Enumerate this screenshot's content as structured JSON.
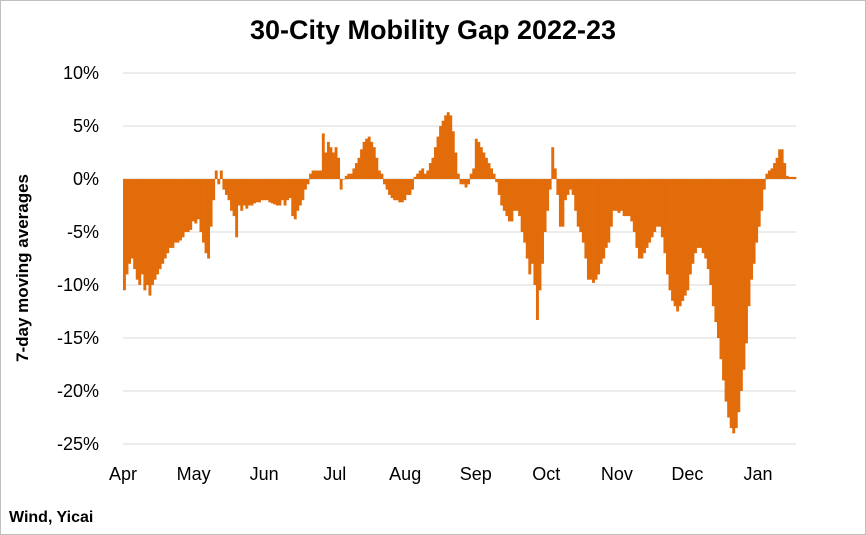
{
  "chart_data": {
    "type": "bar",
    "title": "30-City Mobility Gap 2022-23",
    "ylabel": "7-day moving averages",
    "xlabel": "",
    "source": "Wind, Yicai",
    "ylim": [
      -25,
      10
    ],
    "yticks": [
      10,
      5,
      0,
      -5,
      -10,
      -15,
      -20,
      -25
    ],
    "ytick_labels": [
      "10%",
      "5%",
      "0%",
      "-5%",
      "-10%",
      "-15%",
      "-20%",
      "-25%"
    ],
    "xtick_labels": [
      "Apr",
      "May",
      "Jun",
      "Jul",
      "Aug",
      "Sep",
      "Oct",
      "Nov",
      "Dec",
      "Jan"
    ],
    "grid": true,
    "bar_color": "#e36c0a",
    "series": [
      {
        "values": [
          -10.5,
          -9.0,
          -8.0,
          -7.5,
          -8.5,
          -9.5,
          -10.0,
          -9.0,
          -10.5,
          -10.0,
          -11.0,
          -10.0,
          -9.5,
          -9.0,
          -8.5,
          -8.0,
          -7.5,
          -7.0,
          -6.5,
          -6.5,
          -6.0,
          -6.0,
          -5.8,
          -5.5,
          -5.0,
          -5.0,
          -4.8,
          -4.0,
          -4.2,
          -3.8,
          -5.0,
          -6.0,
          -7.0,
          -7.5,
          -4.5,
          -2.0,
          0.8,
          -0.5,
          0.8,
          -1.0,
          -1.5,
          -2.0,
          -3.0,
          -3.5,
          -5.5,
          -2.5,
          -3.0,
          -2.5,
          -2.8,
          -2.5,
          -2.5,
          -2.3,
          -2.2,
          -2.2,
          -2.0,
          -2.0,
          -2.0,
          -2.2,
          -2.3,
          -2.4,
          -2.5,
          -2.5,
          -2.0,
          -2.5,
          -2.0,
          -1.8,
          -3.5,
          -3.8,
          -3.0,
          -2.5,
          -2.0,
          -1.0,
          -0.5,
          0.5,
          0.8,
          0.8,
          0.8,
          0.8,
          4.3,
          2.5,
          3.5,
          3.0,
          2.5,
          3.0,
          2.0,
          -1.0,
          0.0,
          0.3,
          0.5,
          0.5,
          1.0,
          1.5,
          2.0,
          2.8,
          3.5,
          3.8,
          4.0,
          3.5,
          3.0,
          2.0,
          0.8,
          0.5,
          -0.5,
          -1.0,
          -1.5,
          -1.8,
          -2.0,
          -2.0,
          -2.2,
          -2.2,
          -2.0,
          -1.5,
          -1.5,
          -1.0,
          0.2,
          0.5,
          0.8,
          1.0,
          0.5,
          0.8,
          1.5,
          2.0,
          3.0,
          4.0,
          5.0,
          5.5,
          6.0,
          6.3,
          6.0,
          4.5,
          2.5,
          0.5,
          -0.5,
          -0.5,
          -0.8,
          -0.5,
          0.5,
          1.0,
          3.8,
          3.5,
          3.0,
          2.5,
          2.0,
          1.5,
          1.0,
          0.5,
          -0.3,
          -1.5,
          -2.5,
          -3.0,
          -3.5,
          -4.0,
          -4.0,
          -3.0,
          -3.0,
          -3.5,
          -5.0,
          -6.0,
          -7.5,
          -9.0,
          -8.0,
          -10.0,
          -13.3,
          -10.5,
          -8.0,
          -5.0,
          -3.0,
          -1.0,
          3.0,
          1.0,
          -1.5,
          -4.5,
          -4.5,
          -2.0,
          -1.5,
          -1.0,
          -1.5,
          -3.0,
          -4.5,
          -5.0,
          -6.0,
          -7.5,
          -9.5,
          -9.5,
          -9.8,
          -9.5,
          -9.0,
          -8.0,
          -7.5,
          -6.5,
          -6.0,
          -4.5,
          -3.0,
          -3.0,
          -3.2,
          -3.0,
          -3.5,
          -3.5,
          -3.5,
          -4.0,
          -5.0,
          -6.5,
          -7.5,
          -7.5,
          -7.0,
          -6.5,
          -6.0,
          -5.5,
          -5.0,
          -4.5,
          -4.5,
          -5.5,
          -7.0,
          -9.0,
          -10.5,
          -11.5,
          -12.0,
          -12.5,
          -12.0,
          -11.5,
          -11.0,
          -10.5,
          -9.0,
          -8.0,
          -7.0,
          -6.5,
          -6.5,
          -7.0,
          -7.5,
          -8.5,
          -10.0,
          -12.0,
          -13.5,
          -15.0,
          -17.0,
          -19.0,
          -21.0,
          -22.5,
          -23.5,
          -24.0,
          -23.5,
          -22.0,
          -20.0,
          -18.0,
          -15.5,
          -12.0,
          -9.5,
          -8.0,
          -6.0,
          -4.5,
          -3.0,
          -1.0,
          0.5,
          0.8,
          1.0,
          1.5,
          2.0,
          2.8,
          2.8,
          1.5,
          0.3,
          0.2,
          0.2,
          0.2
        ]
      }
    ]
  }
}
